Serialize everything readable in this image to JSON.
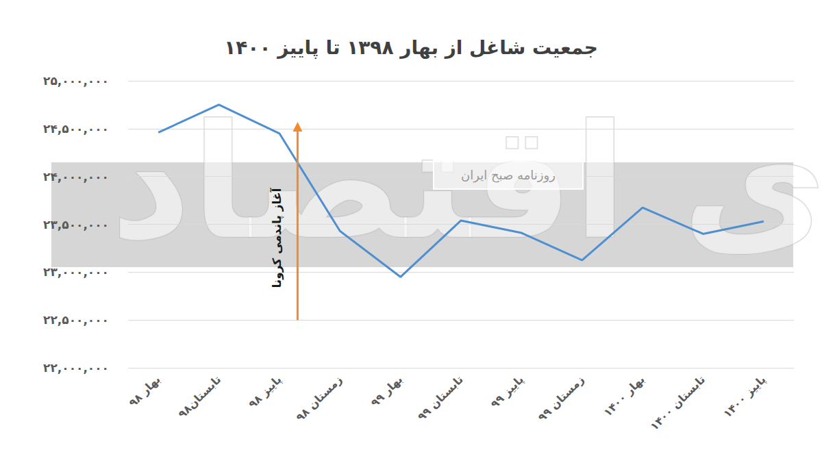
{
  "chart_data": {
    "type": "line",
    "title": "جمعیت شاغل از بهار ۱۳۹۸ تا پاییز ۱۴۰۰",
    "categories": [
      "بهار ۹۸",
      "تابستان۹۸",
      "پاییز ۹۸",
      "زمستان ۹۸",
      "بهار ۹۹",
      "تابستان ۹۹",
      "پاییز ۹۹",
      "زمستان ۹۹",
      "بهار ۱۴۰۰",
      "تابستان ۱۴۰۰",
      "پاییز ۱۴۰۰"
    ],
    "values": [
      24460000,
      24750000,
      24450000,
      23430000,
      22950000,
      23540000,
      23410000,
      23125000,
      23675000,
      23400000,
      23530000
    ],
    "color": "#4f8fcf",
    "ylim": [
      22000000,
      25000000
    ],
    "yticks": [
      {
        "value": 22000000,
        "label": "۲۲,۰۰۰,۰۰۰"
      },
      {
        "value": 22500000,
        "label": "۲۲,۵۰۰,۰۰۰"
      },
      {
        "value": 23000000,
        "label": "۲۳,۰۰۰,۰۰۰"
      },
      {
        "value": 23500000,
        "label": "۲۳,۵۰۰,۰۰۰"
      },
      {
        "value": 24000000,
        "label": "۲۴,۰۰۰,۰۰۰"
      },
      {
        "value": 24500000,
        "label": "۲۴,۵۰۰,۰۰۰"
      },
      {
        "value": 25000000,
        "label": "۲۵,۰۰۰,۰۰۰"
      }
    ],
    "grid": true,
    "annotation": {
      "text": "آغاز پاندمی کرونا",
      "x": 2.3,
      "y": [
        22500000,
        24570000
      ],
      "color": "#f28a30"
    },
    "watermarks": [
      "دنیای اقتصاد",
      "روزنامه صبح ایران"
    ]
  }
}
